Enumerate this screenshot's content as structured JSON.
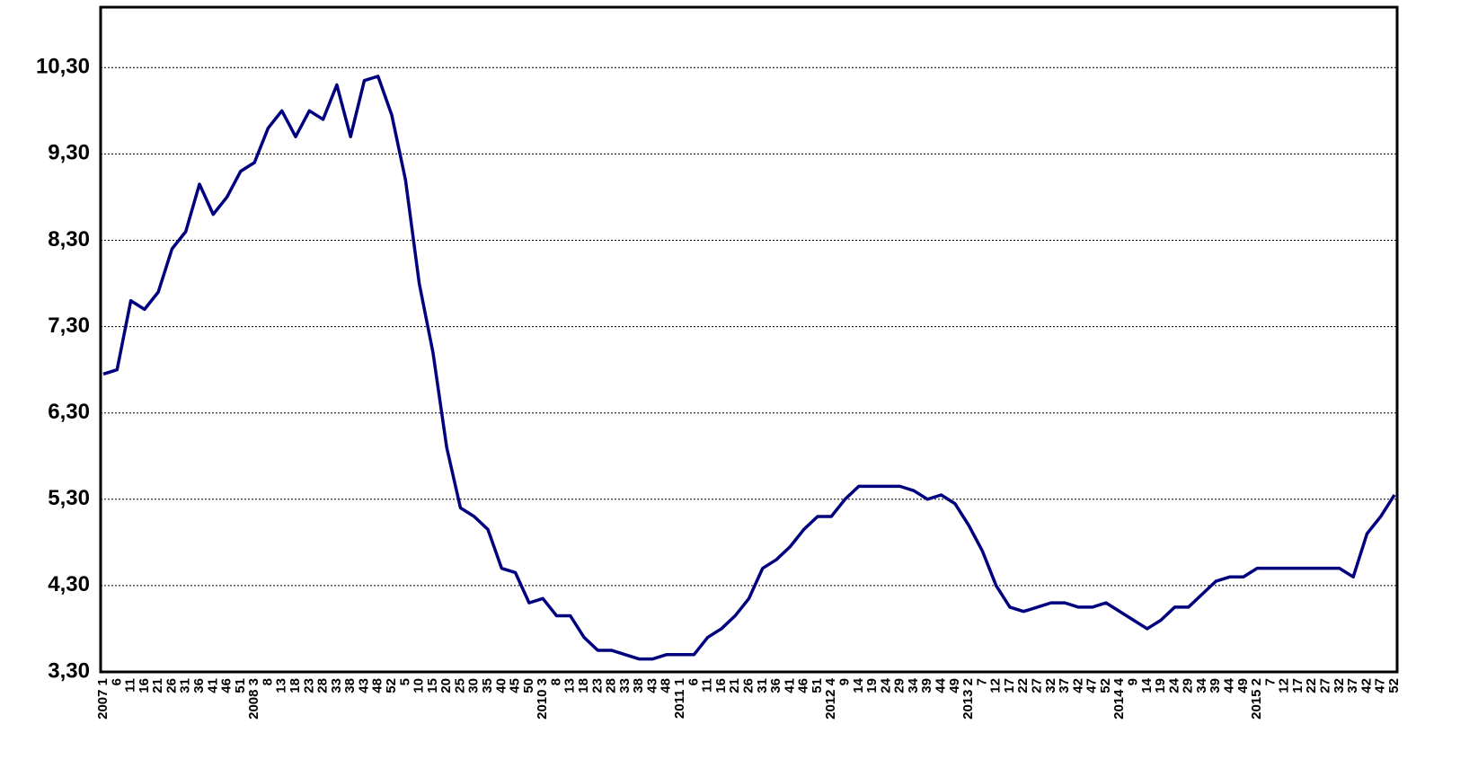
{
  "chart_data": {
    "type": "line",
    "categories": [
      "2007 1",
      "6",
      "11",
      "16",
      "21",
      "26",
      "31",
      "36",
      "41",
      "46",
      "51",
      "2008 3",
      "8",
      "13",
      "18",
      "23",
      "28",
      "33",
      "38",
      "43",
      "48",
      "52",
      "5",
      "10",
      "15",
      "20",
      "25",
      "30",
      "35",
      "40",
      "45",
      "50",
      "2010 3",
      "8",
      "13",
      "18",
      "23",
      "28",
      "33",
      "38",
      "43",
      "48",
      "2011 1",
      "6",
      "11",
      "16",
      "21",
      "26",
      "31",
      "36",
      "41",
      "46",
      "51",
      "2012 4",
      "9",
      "14",
      "19",
      "24",
      "29",
      "34",
      "39",
      "44",
      "49",
      "2013 2",
      "7",
      "12",
      "17",
      "22",
      "27",
      "32",
      "37",
      "42",
      "47",
      "52",
      "2014 4",
      "9",
      "14",
      "19",
      "24",
      "29",
      "34",
      "39",
      "44",
      "49",
      "2015 2",
      "7",
      "12",
      "17",
      "22",
      "27",
      "32",
      "37",
      "42",
      "47",
      "52"
    ],
    "series": [
      {
        "color": "#00007f",
        "values": [
          6.75,
          6.8,
          7.6,
          7.5,
          7.7,
          8.2,
          8.4,
          8.95,
          8.6,
          8.8,
          9.1,
          9.2,
          9.6,
          9.8,
          9.5,
          9.8,
          9.7,
          10.1,
          9.5,
          10.15,
          10.2,
          9.75,
          9.0,
          7.8,
          7.0,
          5.9,
          5.2,
          5.1,
          4.95,
          4.5,
          4.45,
          4.1,
          4.15,
          3.95,
          3.95,
          3.7,
          3.55,
          3.55,
          3.5,
          3.45,
          3.45,
          3.5,
          3.5,
          3.5,
          3.7,
          3.8,
          3.95,
          4.15,
          4.5,
          4.6,
          4.75,
          4.95,
          5.1,
          5.1,
          5.3,
          5.45,
          5.45,
          5.45,
          5.45,
          5.4,
          5.3,
          5.35,
          5.25,
          5.0,
          4.7,
          4.3,
          4.05,
          4.0,
          4.05,
          4.1,
          4.1,
          4.05,
          4.05,
          4.1,
          4.0,
          3.9,
          3.8,
          3.9,
          4.05,
          4.05,
          4.2,
          4.35,
          4.4,
          4.4,
          4.5,
          4.5,
          4.5,
          4.5,
          4.5,
          4.5,
          4.5,
          4.4,
          4.9,
          5.1,
          5.35
        ]
      }
    ],
    "ylim": [
      3.3,
      11.0
    ],
    "yticks": [
      {
        "value": 3.3,
        "label": "3,30"
      },
      {
        "value": 4.3,
        "label": "4,30"
      },
      {
        "value": 5.3,
        "label": "5,30"
      },
      {
        "value": 6.3,
        "label": "6,30"
      },
      {
        "value": 7.3,
        "label": "7,30"
      },
      {
        "value": 8.3,
        "label": "8,30"
      },
      {
        "value": 9.3,
        "label": "9,30"
      },
      {
        "value": 10.3,
        "label": "10,30"
      }
    ],
    "grid": true
  }
}
